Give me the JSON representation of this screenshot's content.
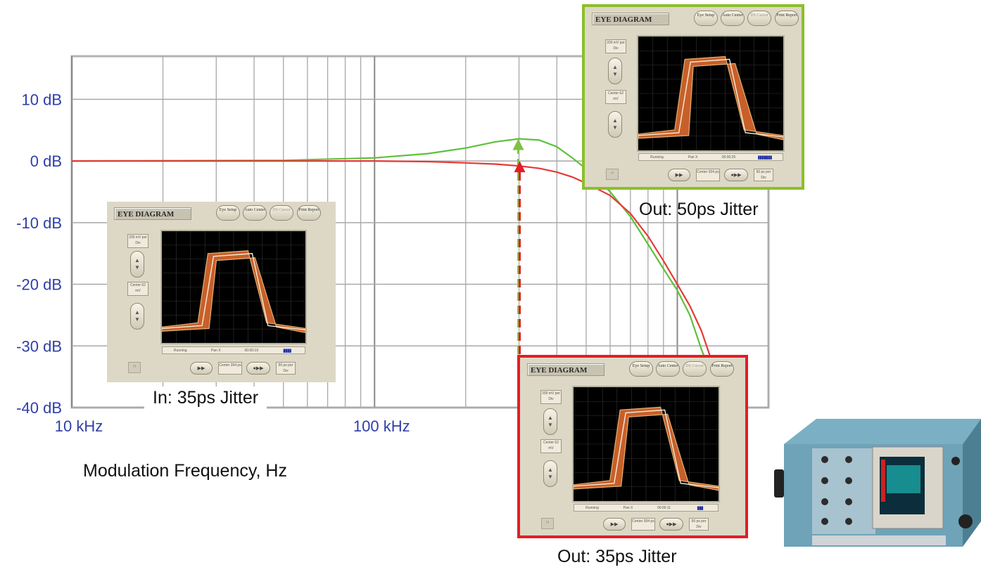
{
  "chart_data": {
    "type": "line",
    "xscale": "log",
    "xlim": [
      "10 kHz",
      "2 MHz"
    ],
    "ylim": [
      -40,
      17
    ],
    "grid": true,
    "xlabel": "Modulation Frequency, Hz",
    "y_ticks": [
      "10 dB",
      "0 dB",
      "-10 dB",
      "-20 dB",
      "-30 dB",
      "-40 dB"
    ],
    "y_tick_values": [
      10,
      0,
      -10,
      -20,
      -30,
      -40
    ],
    "x_ticks": [
      "10 kHz",
      "100 kHz"
    ],
    "series": [
      {
        "color": "#5cc13c",
        "x_hz": [
          10000,
          50000,
          100000,
          150000,
          200000,
          250000,
          300000,
          350000,
          400000,
          450000,
          500000,
          600000,
          700000,
          800000,
          900000,
          1000000,
          1100000,
          1200000,
          1300000
        ],
        "y_db": [
          0,
          0.1,
          0.5,
          1.2,
          2.1,
          3.1,
          3.6,
          3.4,
          2.3,
          0.5,
          -1.3,
          -5,
          -9,
          -13.5,
          -17.5,
          -21,
          -25,
          -30.5,
          -35
        ]
      },
      {
        "color": "#e53a36",
        "x_hz": [
          10000,
          50000,
          100000,
          150000,
          200000,
          250000,
          300000,
          350000,
          400000,
          450000,
          500000,
          600000,
          700000,
          800000,
          900000,
          1000000,
          1100000,
          1200000,
          1300000,
          1350000
        ],
        "y_db": [
          0,
          0,
          0,
          -0.1,
          -0.3,
          -0.5,
          -0.8,
          -1.2,
          -1.8,
          -2.6,
          -3.6,
          -5.6,
          -8.5,
          -12.2,
          -16.2,
          -20,
          -23.5,
          -27.5,
          -32.5,
          -35
        ]
      }
    ],
    "markers": [
      {
        "x_hz": 300000,
        "from_db": -40,
        "to_db": 3.6,
        "color": "#7fc242",
        "label": ""
      },
      {
        "x_hz": 300000,
        "from_db": -40,
        "to_db": 0,
        "color": "#e21e26",
        "label": ""
      }
    ]
  },
  "captions": {
    "in": "In: 35ps Jitter",
    "out50": "Out: 50ps Jitter",
    "out35": "Out: 35ps Jitter"
  },
  "eye_panel": {
    "title": "EYE DIAGRAM",
    "buttons": [
      "Eye Setup",
      "Auto Center",
      "DS Cursor",
      "Print Report"
    ],
    "vscale": "200 mV per Div",
    "center_v": "Center 62 mV",
    "status": [
      "Running",
      "Pan X"
    ],
    "center_t": "Center 304 ps",
    "tscale": "50 ps per Div",
    "times": {
      "in": "00:00:19",
      "out50": "00:00:25",
      "out35": "00:00:11"
    }
  },
  "colors": {
    "tick": "#2f3fa8",
    "grid": "#999999",
    "eye_trace": "#e8733a",
    "green_frame": "#8bbf2a",
    "red_frame": "#e21e26"
  }
}
